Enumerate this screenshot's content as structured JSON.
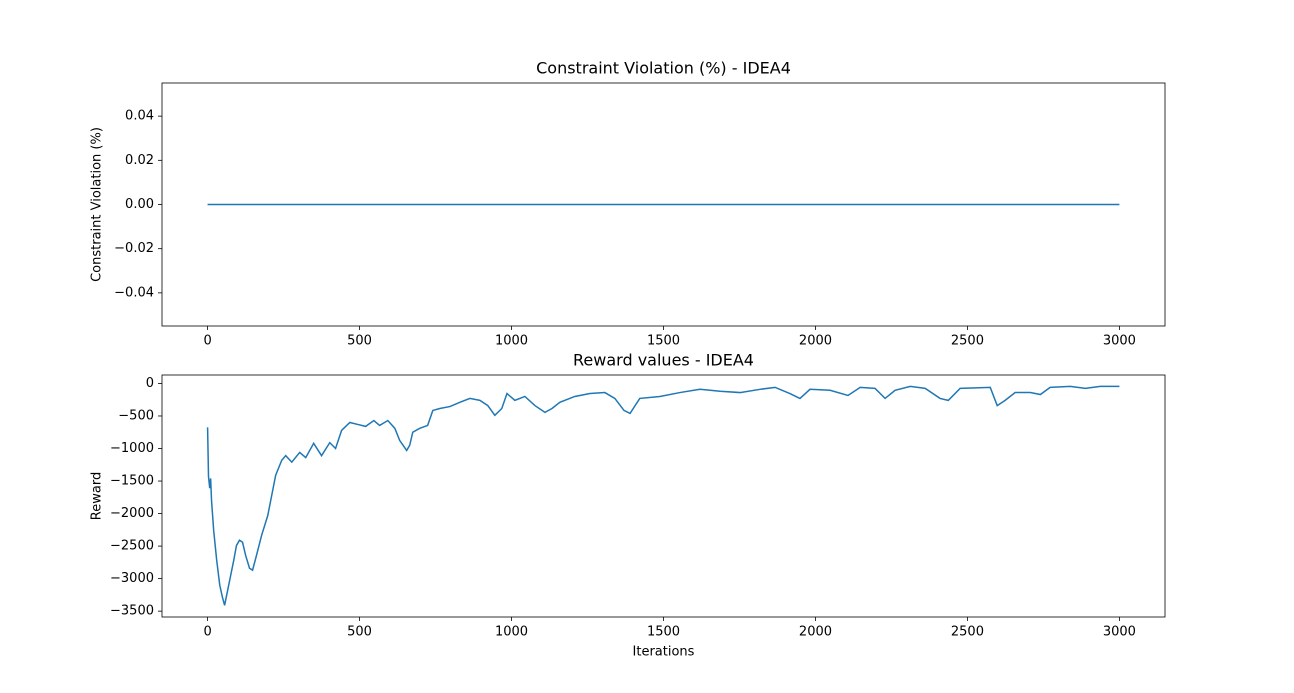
{
  "chart_data": [
    {
      "type": "line",
      "title": "Constraint Violation (%) - IDEA4",
      "ylabel": "Constraint Violation (%)",
      "x": [
        0,
        3000
      ],
      "series": [
        {
          "color": "#1f77b4",
          "values": [
            0,
            0
          ]
        }
      ],
      "xlim": [
        -150,
        3150
      ],
      "xticks": [
        0,
        500,
        1000,
        1500,
        2000,
        2500,
        3000
      ],
      "ylim": [
        -0.055,
        0.055
      ],
      "yticks": [
        {
          "value": -0.04,
          "label": "−0.04"
        },
        {
          "value": -0.02,
          "label": "−0.02"
        },
        {
          "value": 0,
          "label": "0.00"
        },
        0.02,
        0.04
      ],
      "grid": false
    },
    {
      "type": "line",
      "title": "Reward values - IDEA4",
      "xlabel": "Iterations",
      "ylabel": "Reward",
      "x": [
        0,
        3,
        7,
        10,
        13,
        20,
        30,
        40,
        49,
        56,
        66,
        76,
        86,
        95,
        105,
        115,
        125,
        138,
        148,
        161,
        178,
        198,
        211,
        224,
        244,
        257,
        277,
        303,
        323,
        349,
        375,
        402,
        421,
        441,
        468,
        494,
        520,
        547,
        566,
        593,
        616,
        632,
        655,
        665,
        675,
        698,
        724,
        741,
        764,
        797,
        830,
        863,
        896,
        922,
        945,
        968,
        985,
        1011,
        1044,
        1077,
        1110,
        1133,
        1159,
        1208,
        1258,
        1307,
        1340,
        1370,
        1390,
        1422,
        1488,
        1554,
        1620,
        1686,
        1752,
        1818,
        1867,
        1916,
        1949,
        1982,
        2048,
        2107,
        2147,
        2196,
        2229,
        2262,
        2312,
        2361,
        2410,
        2437,
        2476,
        2575,
        2598,
        2624,
        2657,
        2707,
        2740,
        2772,
        2838,
        2888,
        2937,
        3000
      ],
      "series": [
        {
          "color": "#1f77b4",
          "values": [
            -675,
            -1430,
            -1610,
            -1460,
            -1800,
            -2260,
            -2720,
            -3100,
            -3290,
            -3410,
            -3180,
            -2950,
            -2720,
            -2490,
            -2410,
            -2440,
            -2640,
            -2840,
            -2870,
            -2640,
            -2330,
            -2030,
            -1720,
            -1410,
            -1180,
            -1110,
            -1210,
            -1060,
            -1140,
            -920,
            -1110,
            -910,
            -1000,
            -720,
            -600,
            -630,
            -660,
            -570,
            -645,
            -570,
            -690,
            -875,
            -1030,
            -950,
            -750,
            -690,
            -645,
            -415,
            -385,
            -355,
            -290,
            -230,
            -260,
            -340,
            -490,
            -385,
            -155,
            -260,
            -200,
            -340,
            -445,
            -385,
            -290,
            -200,
            -155,
            -140,
            -230,
            -415,
            -460,
            -230,
            -200,
            -140,
            -90,
            -120,
            -140,
            -90,
            -60,
            -155,
            -230,
            -90,
            -105,
            -185,
            -60,
            -75,
            -230,
            -105,
            -45,
            -75,
            -230,
            -260,
            -75,
            -60,
            -340,
            -260,
            -140,
            -140,
            -170,
            -60,
            -45,
            -75,
            -45,
            -45
          ]
        }
      ],
      "xlim": [
        -150,
        3150
      ],
      "xticks": [
        0,
        500,
        1000,
        1500,
        2000,
        2500,
        3000
      ],
      "ylim": [
        -3590,
        130
      ],
      "yticks": [
        {
          "value": -3500,
          "label": "−3500"
        },
        {
          "value": -3000,
          "label": "−3000"
        },
        {
          "value": -2500,
          "label": "−2500"
        },
        {
          "value": -2000,
          "label": "−2000"
        },
        {
          "value": -1500,
          "label": "−1500"
        },
        {
          "value": -1000,
          "label": "−1000"
        },
        {
          "value": -500,
          "label": "−500"
        },
        0
      ],
      "grid": false
    }
  ]
}
